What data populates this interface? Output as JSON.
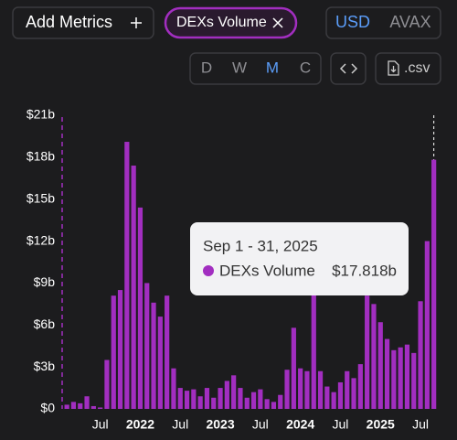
{
  "ui": {
    "add_metrics": "Add Metrics",
    "currency": [
      "USD",
      "AVAX"
    ],
    "intervals": [
      "D",
      "W",
      "M",
      "C"
    ],
    "csv": ".csv"
  },
  "chart_data": {
    "type": "bar",
    "categories": [
      null,
      null,
      null,
      null,
      null,
      "Jul",
      null,
      null,
      null,
      null,
      null,
      "2022",
      null,
      null,
      null,
      null,
      null,
      "Jul",
      null,
      null,
      null,
      null,
      null,
      "2023",
      null,
      null,
      null,
      null,
      null,
      "Jul",
      null,
      null,
      null,
      null,
      null,
      "2024",
      null,
      null,
      null,
      null,
      null,
      "Jul",
      null,
      null,
      null,
      null,
      null,
      "2025",
      null,
      null,
      null,
      null,
      null,
      "Jul",
      null,
      null
    ],
    "series": [
      {
        "name": "DEXs Volume",
        "color": "#a22ec0",
        "values": [
          0.3,
          0.5,
          0.4,
          0.9,
          0.2,
          0.1,
          3.5,
          8.1,
          8.5,
          19.1,
          17.4,
          14.4,
          9.0,
          7.6,
          6.6,
          8.1,
          2.9,
          1.5,
          1.3,
          1.4,
          0.9,
          1.5,
          0.8,
          1.5,
          2.0,
          2.4,
          1.5,
          0.8,
          1.2,
          1.4,
          0.7,
          0.5,
          1.0,
          2.8,
          5.8,
          2.9,
          2.7,
          8.3,
          2.7,
          1.6,
          1.2,
          1.9,
          2.7,
          2.2,
          3.2,
          8.1,
          7.5,
          6.2,
          5.0,
          4.2,
          4.4,
          4.6,
          4.0,
          7.7,
          12.0,
          17.818
        ]
      }
    ],
    "ylim": [
      0,
      21
    ],
    "yticks": [
      {
        "value": 0,
        "label": "$0"
      },
      {
        "value": 3,
        "label": "$3b"
      },
      {
        "value": 6,
        "label": "$6b"
      },
      {
        "value": 9,
        "label": "$9b"
      },
      {
        "value": 12,
        "label": "$12b"
      },
      {
        "value": 15,
        "label": "$15b"
      },
      {
        "value": 18,
        "label": "$18b"
      },
      {
        "value": 21,
        "label": "$21b"
      }
    ],
    "grid": false,
    "tooltip": {
      "title": "Sep 1 - 31, 2025",
      "value_label": "$17.818b"
    }
  }
}
